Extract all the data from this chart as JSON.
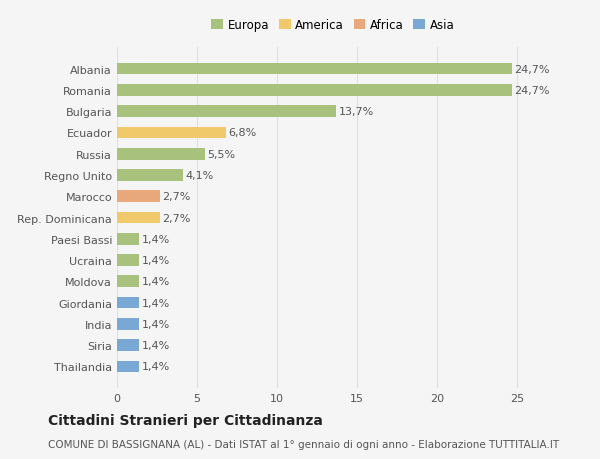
{
  "categories": [
    "Albania",
    "Romania",
    "Bulgaria",
    "Ecuador",
    "Russia",
    "Regno Unito",
    "Marocco",
    "Rep. Dominicana",
    "Paesi Bassi",
    "Ucraina",
    "Moldova",
    "Giordania",
    "India",
    "Siria",
    "Thailandia"
  ],
  "values": [
    24.7,
    24.7,
    13.7,
    6.8,
    5.5,
    4.1,
    2.7,
    2.7,
    1.4,
    1.4,
    1.4,
    1.4,
    1.4,
    1.4,
    1.4
  ],
  "labels": [
    "24,7%",
    "24,7%",
    "13,7%",
    "6,8%",
    "5,5%",
    "4,1%",
    "2,7%",
    "2,7%",
    "1,4%",
    "1,4%",
    "1,4%",
    "1,4%",
    "1,4%",
    "1,4%",
    "1,4%"
  ],
  "colors": [
    "#a8c17c",
    "#a8c17c",
    "#a8c17c",
    "#f0c96a",
    "#a8c17c",
    "#a8c17c",
    "#e8a87c",
    "#f0c96a",
    "#a8c17c",
    "#a8c17c",
    "#a8c17c",
    "#7aa8d4",
    "#7aa8d4",
    "#7aa8d4",
    "#7aa8d4"
  ],
  "legend_labels": [
    "Europa",
    "America",
    "Africa",
    "Asia"
  ],
  "legend_colors": [
    "#a8c17c",
    "#f0c96a",
    "#e8a87c",
    "#7aa8d4"
  ],
  "title": "Cittadini Stranieri per Cittadinanza",
  "subtitle": "COMUNE DI BASSIGNANA (AL) - Dati ISTAT al 1° gennaio di ogni anno - Elaborazione TUTTITALIA.IT",
  "xlim": [
    0,
    27
  ],
  "xticks": [
    0,
    5,
    10,
    15,
    20,
    25
  ],
  "background_color": "#f5f5f5",
  "grid_color": "#e0e0e0",
  "bar_height": 0.55,
  "label_fontsize": 8,
  "tick_fontsize": 8,
  "legend_fontsize": 8.5,
  "title_fontsize": 10,
  "subtitle_fontsize": 7.5
}
